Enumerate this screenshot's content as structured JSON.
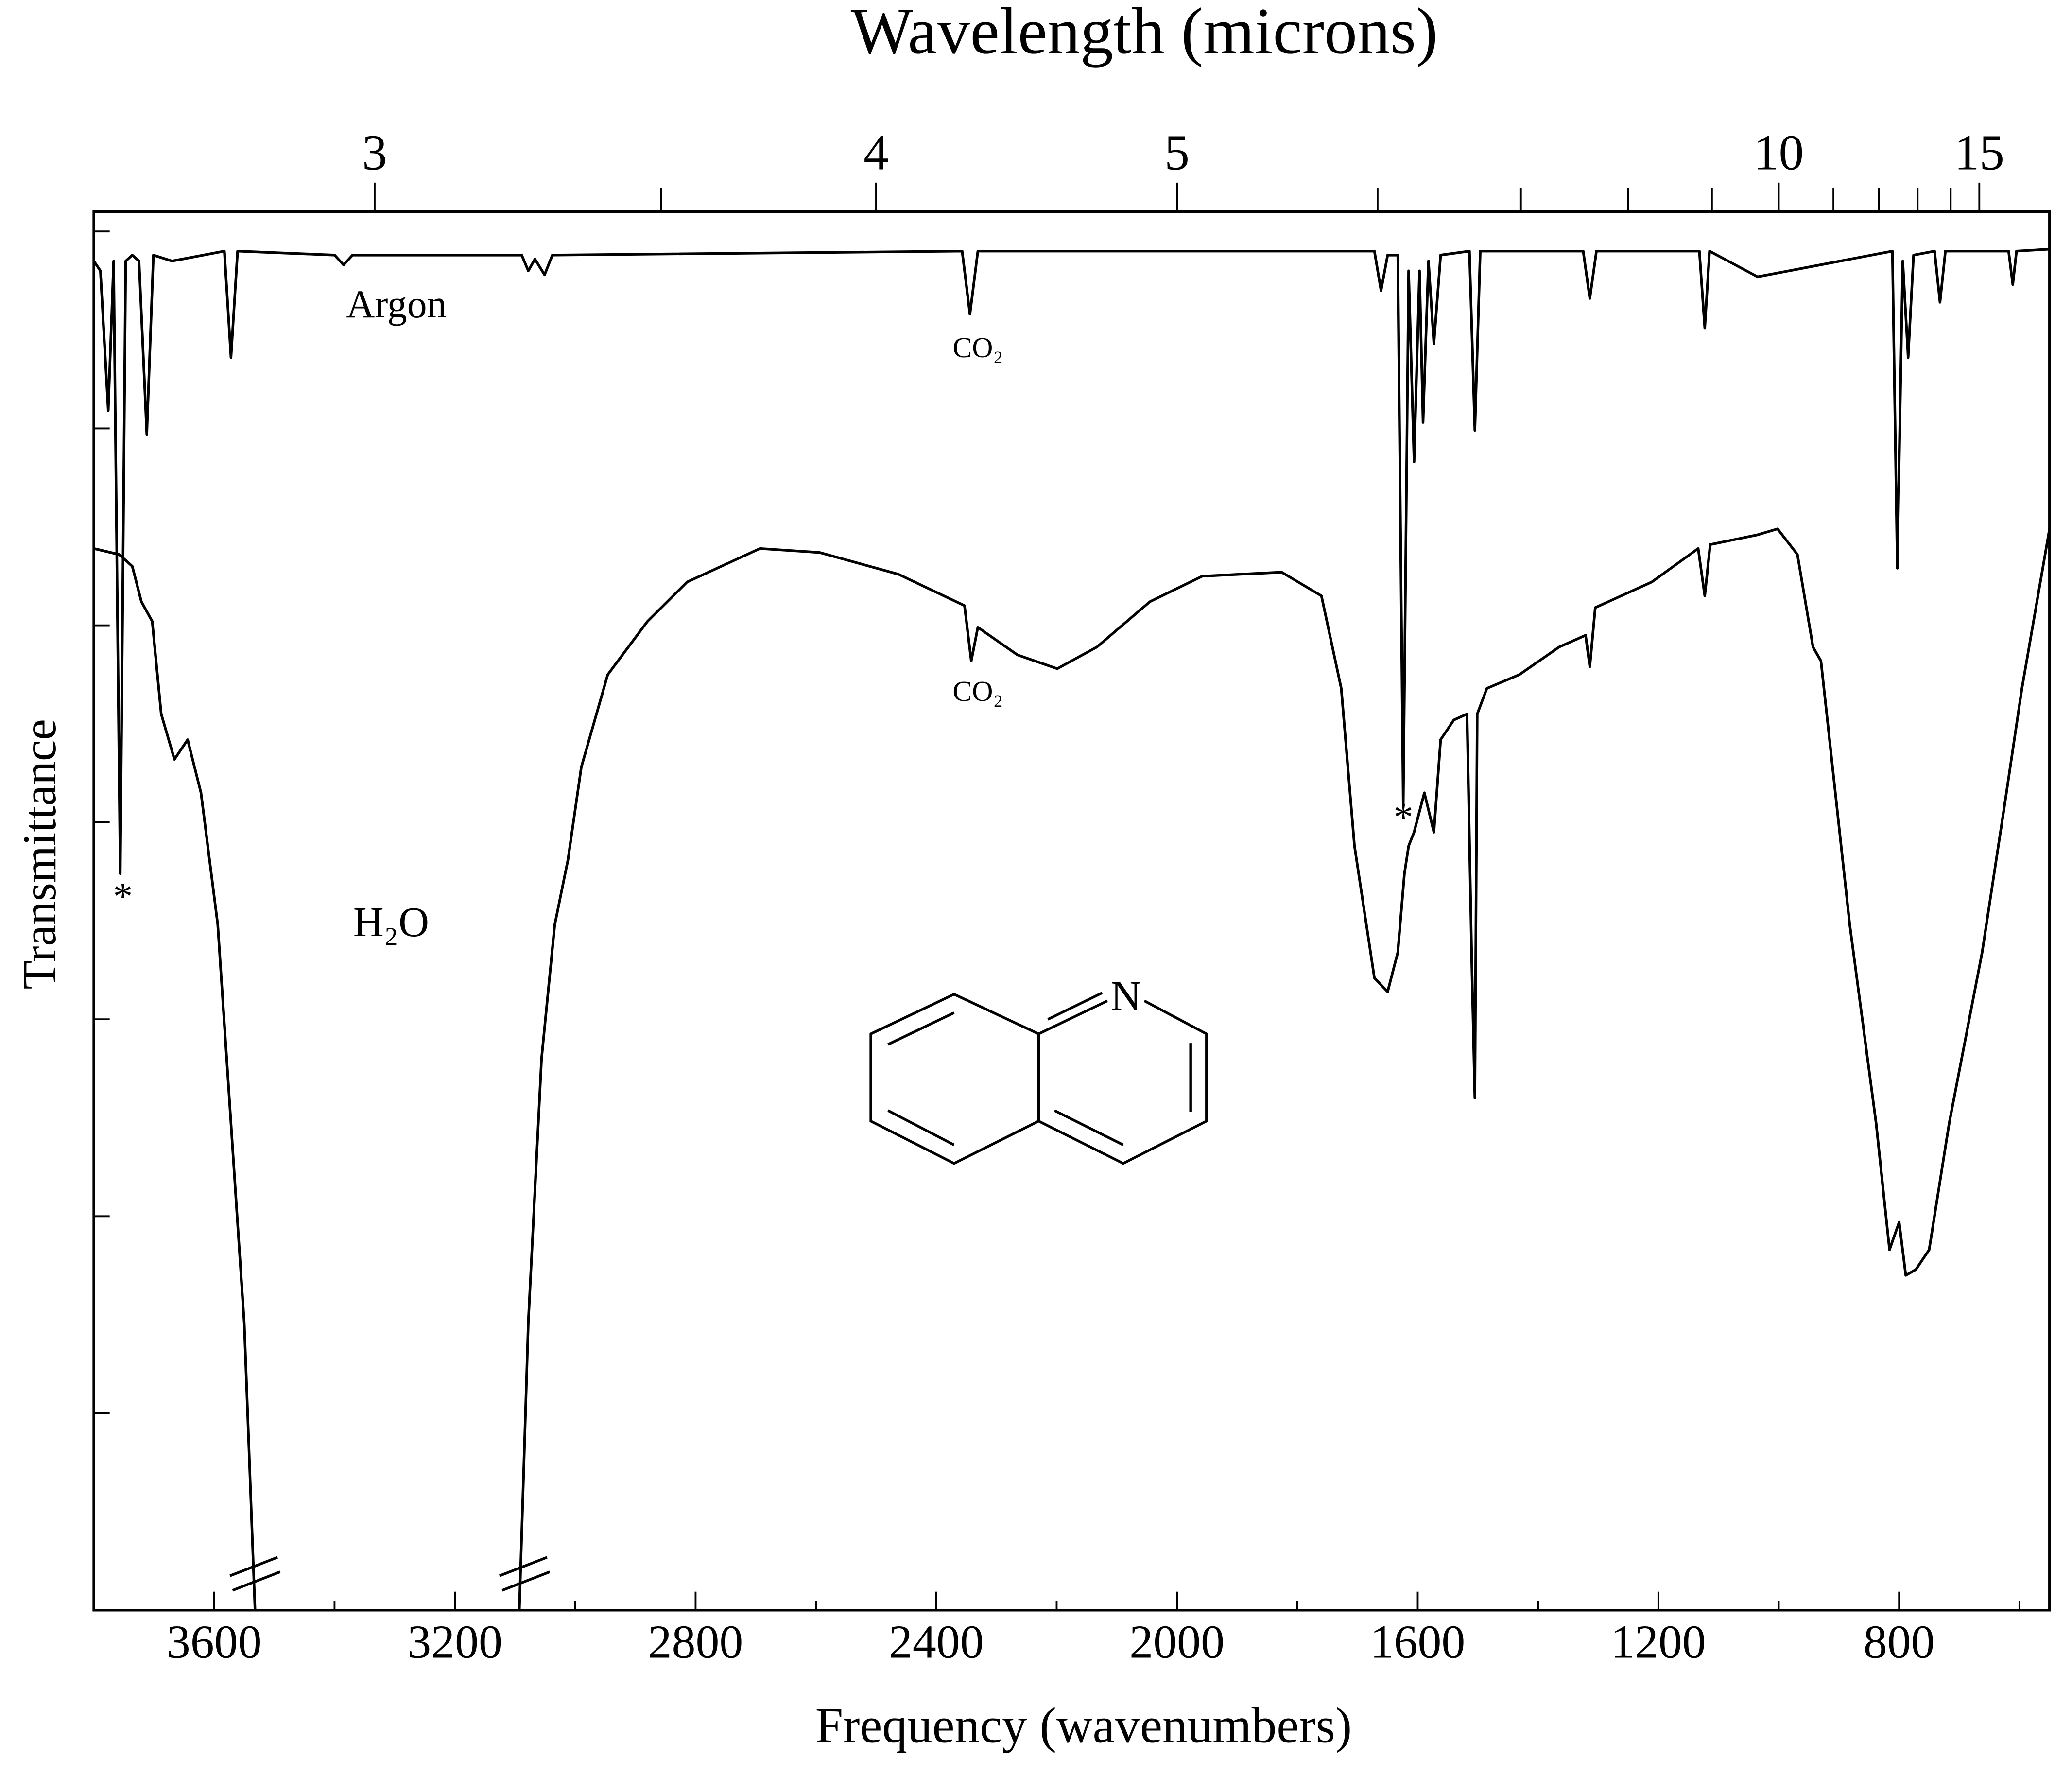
{
  "chart_data": {
    "type": "line",
    "title": "Wavelength (microns)",
    "x_label": "Frequency (wavenumbers)",
    "y_label": "Transmittance",
    "xlim": [
      3800,
      550
    ],
    "xticks": [
      3600,
      3200,
      2800,
      2400,
      2000,
      1600,
      1200,
      800
    ],
    "x_minor_ticks": [
      3400,
      3000,
      2600,
      2200,
      1800,
      1400,
      1000,
      600
    ],
    "x2ticks": [
      3,
      4,
      5,
      10,
      15
    ],
    "x2_minor_ticks": [
      3.5,
      6,
      7,
      8,
      9,
      11,
      12,
      13,
      14
    ],
    "ylim": [
      0,
      7.1
    ],
    "yticks": [
      1,
      2,
      3,
      4,
      5,
      6,
      7
    ],
    "color": "#000000",
    "series": [
      {
        "name": "Argon",
        "x": [
          3800,
          3789,
          3776,
          3767,
          3756,
          3747,
          3736,
          3725,
          3712,
          3701,
          3670,
          3583,
          3572,
          3561,
          3400,
          3385,
          3370,
          3089,
          3078,
          3067,
          3051,
          3038,
          2357,
          2344,
          2331,
          1672,
          1661,
          1650,
          1633,
          1624,
          1615,
          1606,
          1597,
          1591,
          1582,
          1573,
          1562,
          1514,
          1505,
          1496,
          1325,
          1314,
          1303,
          1132,
          1123,
          1115,
          1035,
          811,
          803,
          794,
          785,
          776,
          741,
          732,
          723,
          618,
          611,
          605,
          550
        ],
        "values": [
          6.85,
          6.8,
          6.09,
          6.85,
          3.74,
          6.85,
          6.88,
          6.85,
          5.97,
          6.88,
          6.85,
          6.9,
          6.36,
          6.9,
          6.88,
          6.83,
          6.88,
          6.88,
          6.8,
          6.86,
          6.78,
          6.88,
          6.9,
          6.58,
          6.9,
          6.9,
          6.7,
          6.88,
          6.88,
          4.09,
          6.8,
          5.83,
          6.8,
          6.03,
          6.85,
          6.43,
          6.88,
          6.9,
          5.99,
          6.9,
          6.9,
          6.66,
          6.9,
          6.9,
          6.51,
          6.9,
          6.77,
          6.9,
          5.29,
          6.85,
          6.36,
          6.88,
          6.9,
          6.64,
          6.9,
          6.9,
          6.73,
          6.9,
          6.91
        ]
      },
      {
        "name": "H₂O",
        "x": [
          3800,
          3758,
          3736,
          3721,
          3703,
          3688,
          3666,
          3644,
          3622,
          3594,
          3572,
          3550,
          3532,
          3300,
          3093,
          3078,
          3056,
          3034,
          3012,
          2990,
          2946,
          2880,
          2814,
          2693,
          2594,
          2463,
          2353,
          2342,
          2331,
          2265,
          2199,
          2133,
          2045,
          1958,
          1826,
          1760,
          1727,
          1705,
          1672,
          1650,
          1633,
          1622,
          1615,
          1606,
          1589,
          1573,
          1562,
          1540,
          1518,
          1510,
          1505,
          1501,
          1485,
          1431,
          1365,
          1321,
          1314,
          1305,
          1211,
          1134,
          1123,
          1114,
          1035,
          1002,
          969,
          943,
          930,
          882,
          838,
          816,
          800,
          789,
          772,
          750,
          717,
          662,
          625,
          596,
          550
        ],
        "values": [
          5.39,
          5.36,
          5.3,
          5.12,
          5.02,
          4.55,
          4.32,
          4.42,
          4.15,
          3.48,
          2.47,
          1.46,
          0,
          null,
          0,
          1.46,
          2.8,
          3.48,
          3.81,
          4.28,
          4.75,
          5.02,
          5.22,
          5.39,
          5.37,
          5.26,
          5.1,
          4.82,
          4.99,
          4.85,
          4.78,
          4.89,
          5.12,
          5.25,
          5.27,
          5.15,
          4.68,
          3.88,
          3.21,
          3.14,
          3.34,
          3.74,
          3.88,
          3.95,
          4.15,
          3.95,
          4.42,
          4.52,
          4.55,
          3.28,
          2.6,
          4.55,
          4.68,
          4.75,
          4.89,
          4.95,
          4.79,
          5.09,
          5.22,
          5.39,
          5.15,
          5.41,
          5.46,
          5.49,
          5.36,
          4.89,
          4.82,
          3.48,
          2.47,
          1.83,
          1.97,
          1.7,
          1.73,
          1.83,
          2.47,
          3.34,
          4.08,
          4.68,
          5.49
        ]
      }
    ],
    "annotations": [
      "Argon",
      "CO₂",
      "CO₂",
      "*",
      "*",
      "H₂O"
    ],
    "structure_label": "N"
  }
}
